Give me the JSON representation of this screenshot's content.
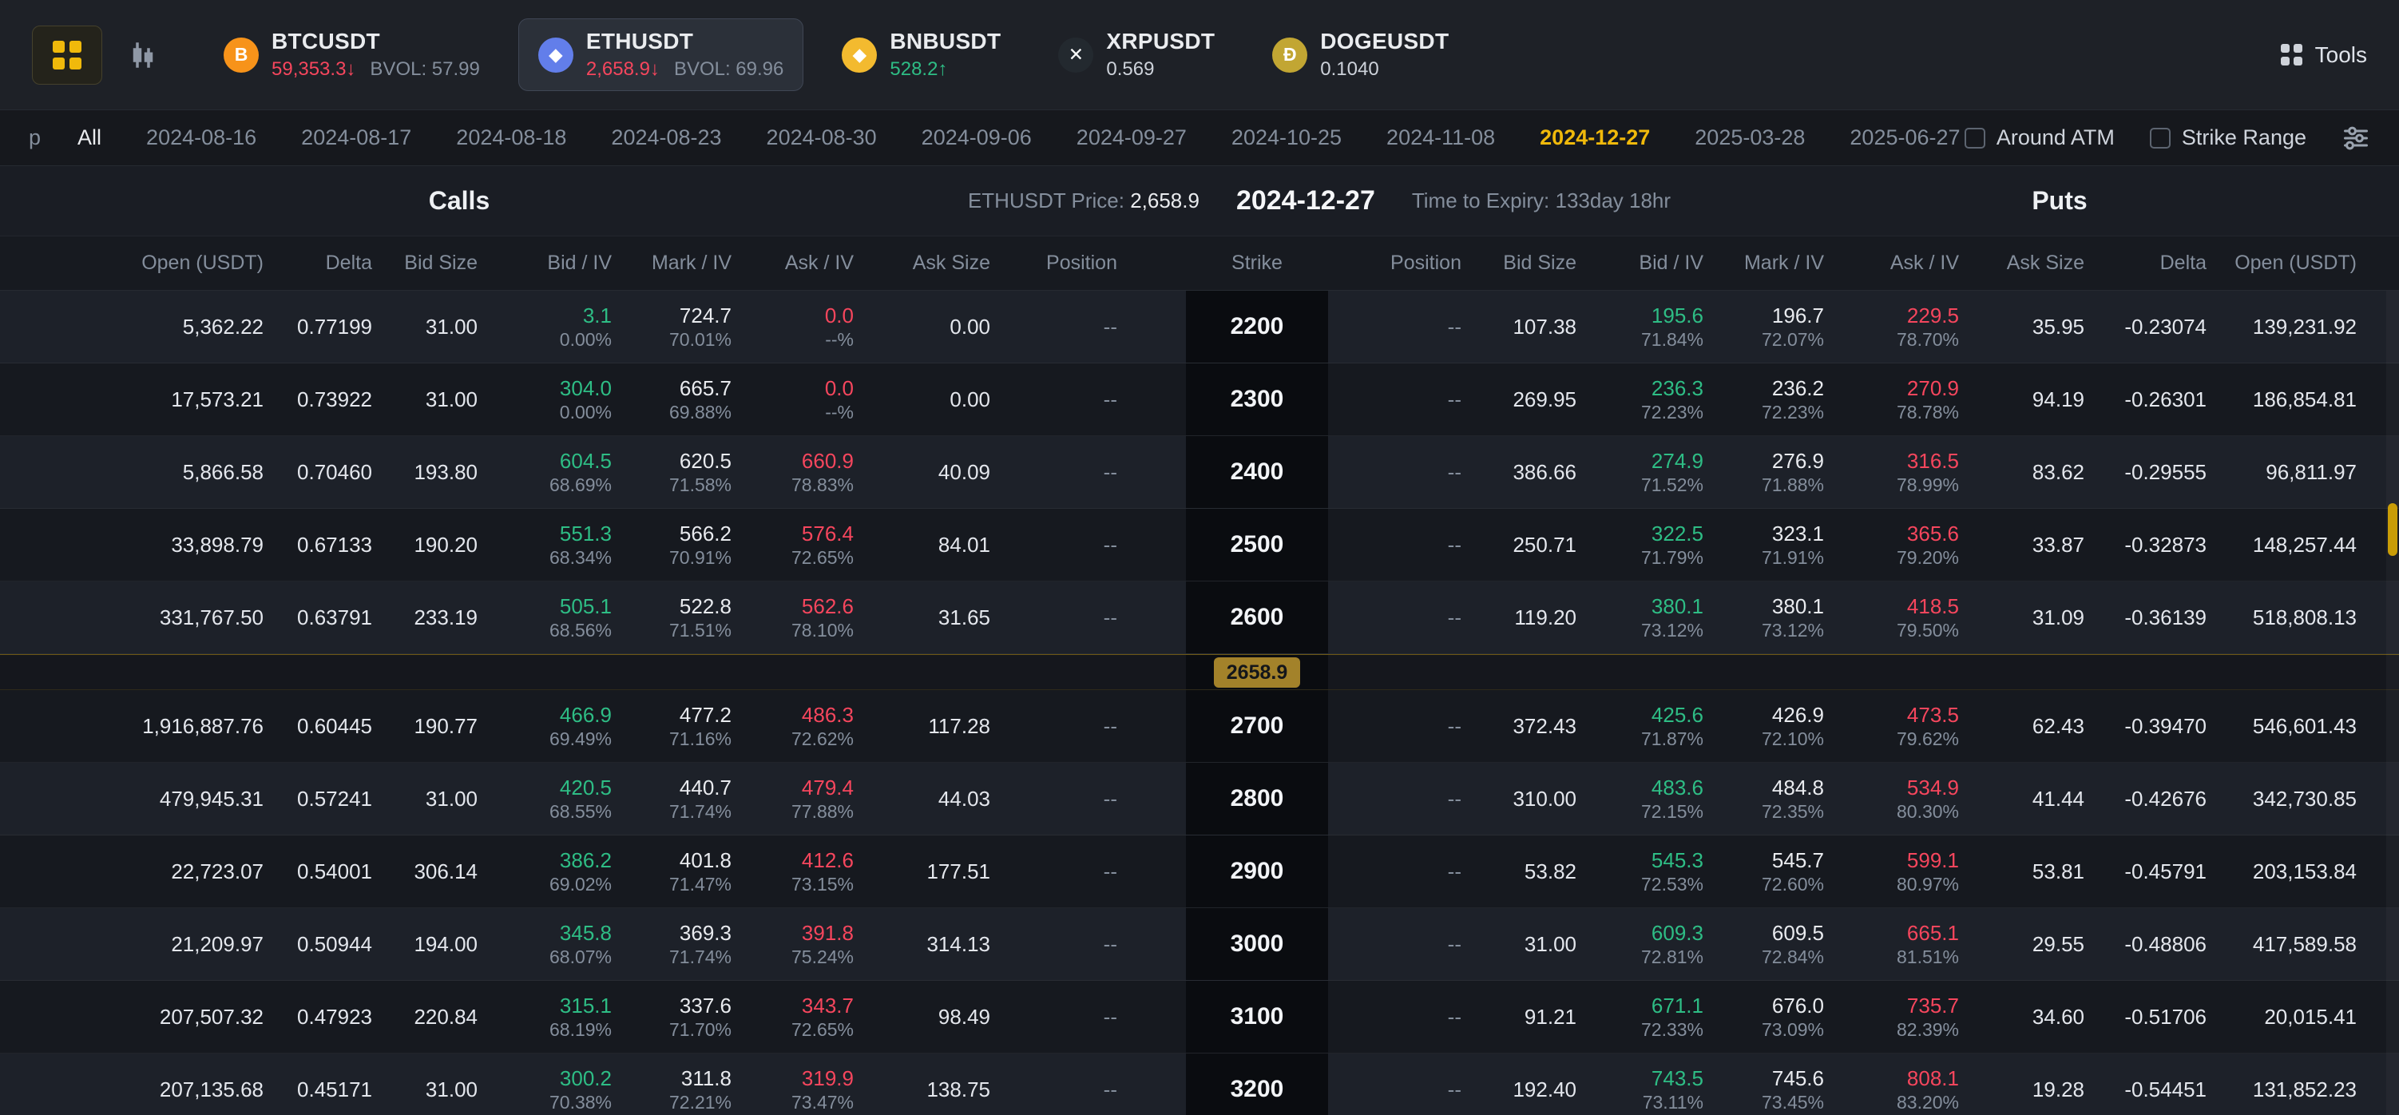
{
  "topbar": {
    "tools_label": "Tools",
    "tickers": [
      {
        "symbol": "BTCUSDT",
        "glyph": "B",
        "icon_bg": "#f7931a",
        "price": "59,353.3",
        "arrow": "↓",
        "price_class": "red",
        "bvol": "BVOL: 57.99",
        "selected": false
      },
      {
        "symbol": "ETHUSDT",
        "glyph": "◆",
        "icon_bg": "#627eea",
        "price": "2,658.9",
        "arrow": "↓",
        "price_class": "red",
        "bvol": "BVOL: 69.96",
        "selected": true
      },
      {
        "symbol": "BNBUSDT",
        "glyph": "◆",
        "icon_bg": "#f3ba2f",
        "price": "528.2",
        "arrow": "↑",
        "price_class": "green",
        "bvol": "",
        "selected": false
      },
      {
        "symbol": "XRPUSDT",
        "glyph": "✕",
        "icon_bg": "#23292f",
        "price": "0.569",
        "arrow": "",
        "price_class": "plain",
        "bvol": "",
        "selected": false
      },
      {
        "symbol": "DOGEUSDT",
        "glyph": "Ð",
        "icon_bg": "#c2a633",
        "price": "0.1040",
        "arrow": "",
        "price_class": "plain",
        "bvol": "",
        "selected": false
      }
    ]
  },
  "datebar": {
    "prefix": "p",
    "all_label": "All",
    "dates": [
      "2024-08-16",
      "2024-08-17",
      "2024-08-18",
      "2024-08-23",
      "2024-08-30",
      "2024-09-06",
      "2024-09-27",
      "2024-10-25",
      "2024-11-08",
      "2024-12-27",
      "2025-03-28",
      "2025-06-27"
    ],
    "selected_date": "2024-12-27",
    "around_atm_label": "Around ATM",
    "strike_range_label": "Strike Range"
  },
  "summary": {
    "calls_label": "Calls",
    "price_label": "ETHUSDT Price:",
    "price_value": "2,658.9",
    "date": "2024-12-27",
    "expiry": "Time to Expiry: 133day 18hr",
    "puts_label": "Puts"
  },
  "table": {
    "calls_headers": [
      "Open (USDT)",
      "Delta",
      "Bid Size",
      "Bid / IV",
      "Mark / IV",
      "Ask / IV",
      "Ask Size",
      "Position"
    ],
    "strike_header": "Strike",
    "puts_headers": [
      "Position",
      "Bid Size",
      "Bid / IV",
      "Mark / IV",
      "Ask / IV",
      "Ask Size",
      "Delta",
      "Open (USDT)"
    ],
    "price_marker": {
      "value": "2658.9",
      "after_strike": "2600"
    },
    "rows": [
      {
        "strike": "2200",
        "calls": {
          "open": "5,362.22",
          "delta": "0.77199",
          "bid_size": "31.00",
          "bid": "3.1",
          "bid_iv": "0.00%",
          "mark": "724.7",
          "mark_iv": "70.01%",
          "ask": "0.0",
          "ask_iv": "--%",
          "ask_size": "0.00",
          "position": "--"
        },
        "puts": {
          "position": "--",
          "bid_size": "107.38",
          "bid": "195.6",
          "bid_iv": "71.84%",
          "mark": "196.7",
          "mark_iv": "72.07%",
          "ask": "229.5",
          "ask_iv": "78.70%",
          "ask_size": "35.95",
          "delta": "-0.23074",
          "open": "139,231.92"
        }
      },
      {
        "strike": "2300",
        "calls": {
          "open": "17,573.21",
          "delta": "0.73922",
          "bid_size": "31.00",
          "bid": "304.0",
          "bid_iv": "0.00%",
          "mark": "665.7",
          "mark_iv": "69.88%",
          "ask": "0.0",
          "ask_iv": "--%",
          "ask_size": "0.00",
          "position": "--"
        },
        "puts": {
          "position": "--",
          "bid_size": "269.95",
          "bid": "236.3",
          "bid_iv": "72.23%",
          "mark": "236.2",
          "mark_iv": "72.23%",
          "ask": "270.9",
          "ask_iv": "78.78%",
          "ask_size": "94.19",
          "delta": "-0.26301",
          "open": "186,854.81"
        }
      },
      {
        "strike": "2400",
        "calls": {
          "open": "5,866.58",
          "delta": "0.70460",
          "bid_size": "193.80",
          "bid": "604.5",
          "bid_iv": "68.69%",
          "mark": "620.5",
          "mark_iv": "71.58%",
          "ask": "660.9",
          "ask_iv": "78.83%",
          "ask_size": "40.09",
          "position": "--"
        },
        "puts": {
          "position": "--",
          "bid_size": "386.66",
          "bid": "274.9",
          "bid_iv": "71.52%",
          "mark": "276.9",
          "mark_iv": "71.88%",
          "ask": "316.5",
          "ask_iv": "78.99%",
          "ask_size": "83.62",
          "delta": "-0.29555",
          "open": "96,811.97"
        }
      },
      {
        "strike": "2500",
        "calls": {
          "open": "33,898.79",
          "delta": "0.67133",
          "bid_size": "190.20",
          "bid": "551.3",
          "bid_iv": "68.34%",
          "mark": "566.2",
          "mark_iv": "70.91%",
          "ask": "576.4",
          "ask_iv": "72.65%",
          "ask_size": "84.01",
          "position": "--"
        },
        "puts": {
          "position": "--",
          "bid_size": "250.71",
          "bid": "322.5",
          "bid_iv": "71.79%",
          "mark": "323.1",
          "mark_iv": "71.91%",
          "ask": "365.6",
          "ask_iv": "79.20%",
          "ask_size": "33.87",
          "delta": "-0.32873",
          "open": "148,257.44"
        }
      },
      {
        "strike": "2600",
        "calls": {
          "open": "331,767.50",
          "delta": "0.63791",
          "bid_size": "233.19",
          "bid": "505.1",
          "bid_iv": "68.56%",
          "mark": "522.8",
          "mark_iv": "71.51%",
          "ask": "562.6",
          "ask_iv": "78.10%",
          "ask_size": "31.65",
          "position": "--"
        },
        "puts": {
          "position": "--",
          "bid_size": "119.20",
          "bid": "380.1",
          "bid_iv": "73.12%",
          "mark": "380.1",
          "mark_iv": "73.12%",
          "ask": "418.5",
          "ask_iv": "79.50%",
          "ask_size": "31.09",
          "delta": "-0.36139",
          "open": "518,808.13"
        }
      },
      {
        "strike": "2700",
        "calls": {
          "open": "1,916,887.76",
          "delta": "0.60445",
          "bid_size": "190.77",
          "bid": "466.9",
          "bid_iv": "69.49%",
          "mark": "477.2",
          "mark_iv": "71.16%",
          "ask": "486.3",
          "ask_iv": "72.62%",
          "ask_size": "117.28",
          "position": "--"
        },
        "puts": {
          "position": "--",
          "bid_size": "372.43",
          "bid": "425.6",
          "bid_iv": "71.87%",
          "mark": "426.9",
          "mark_iv": "72.10%",
          "ask": "473.5",
          "ask_iv": "79.62%",
          "ask_size": "62.43",
          "delta": "-0.39470",
          "open": "546,601.43"
        }
      },
      {
        "strike": "2800",
        "calls": {
          "open": "479,945.31",
          "delta": "0.57241",
          "bid_size": "31.00",
          "bid": "420.5",
          "bid_iv": "68.55%",
          "mark": "440.7",
          "mark_iv": "71.74%",
          "ask": "479.4",
          "ask_iv": "77.88%",
          "ask_size": "44.03",
          "position": "--"
        },
        "puts": {
          "position": "--",
          "bid_size": "310.00",
          "bid": "483.6",
          "bid_iv": "72.15%",
          "mark": "484.8",
          "mark_iv": "72.35%",
          "ask": "534.9",
          "ask_iv": "80.30%",
          "ask_size": "41.44",
          "delta": "-0.42676",
          "open": "342,730.85"
        }
      },
      {
        "strike": "2900",
        "calls": {
          "open": "22,723.07",
          "delta": "0.54001",
          "bid_size": "306.14",
          "bid": "386.2",
          "bid_iv": "69.02%",
          "mark": "401.8",
          "mark_iv": "71.47%",
          "ask": "412.6",
          "ask_iv": "73.15%",
          "ask_size": "177.51",
          "position": "--"
        },
        "puts": {
          "position": "--",
          "bid_size": "53.82",
          "bid": "545.3",
          "bid_iv": "72.53%",
          "mark": "545.7",
          "mark_iv": "72.60%",
          "ask": "599.1",
          "ask_iv": "80.97%",
          "ask_size": "53.81",
          "delta": "-0.45791",
          "open": "203,153.84"
        }
      },
      {
        "strike": "3000",
        "calls": {
          "open": "21,209.97",
          "delta": "0.50944",
          "bid_size": "194.00",
          "bid": "345.8",
          "bid_iv": "68.07%",
          "mark": "369.3",
          "mark_iv": "71.74%",
          "ask": "391.8",
          "ask_iv": "75.24%",
          "ask_size": "314.13",
          "position": "--"
        },
        "puts": {
          "position": "--",
          "bid_size": "31.00",
          "bid": "609.3",
          "bid_iv": "72.81%",
          "mark": "609.5",
          "mark_iv": "72.84%",
          "ask": "665.1",
          "ask_iv": "81.51%",
          "ask_size": "29.55",
          "delta": "-0.48806",
          "open": "417,589.58"
        }
      },
      {
        "strike": "3100",
        "calls": {
          "open": "207,507.32",
          "delta": "0.47923",
          "bid_size": "220.84",
          "bid": "315.1",
          "bid_iv": "68.19%",
          "mark": "337.6",
          "mark_iv": "71.70%",
          "ask": "343.7",
          "ask_iv": "72.65%",
          "ask_size": "98.49",
          "position": "--"
        },
        "puts": {
          "position": "--",
          "bid_size": "91.21",
          "bid": "671.1",
          "bid_iv": "72.33%",
          "mark": "676.0",
          "mark_iv": "73.09%",
          "ask": "735.7",
          "ask_iv": "82.39%",
          "ask_size": "34.60",
          "delta": "-0.51706",
          "open": "20,015.41"
        }
      },
      {
        "strike": "3200",
        "calls": {
          "open": "207,135.68",
          "delta": "0.45171",
          "bid_size": "31.00",
          "bid": "300.2",
          "bid_iv": "70.38%",
          "mark": "311.8",
          "mark_iv": "72.21%",
          "ask": "319.9",
          "ask_iv": "73.47%",
          "ask_size": "138.75",
          "position": "--"
        },
        "puts": {
          "position": "--",
          "bid_size": "192.40",
          "bid": "743.5",
          "bid_iv": "73.11%",
          "mark": "745.6",
          "mark_iv": "73.45%",
          "ask": "808.1",
          "ask_iv": "83.20%",
          "ask_size": "19.28",
          "delta": "-0.54451",
          "open": "131,852.23"
        }
      }
    ]
  }
}
